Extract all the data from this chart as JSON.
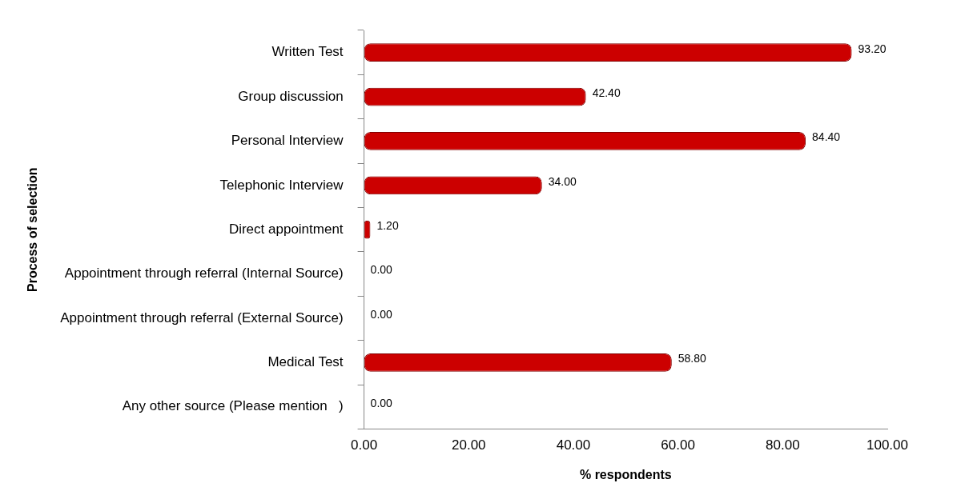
{
  "chart_data": {
    "type": "bar",
    "orientation": "horizontal",
    "xlabel": "% respondents",
    "ylabel": "Process of selection",
    "categories": [
      "Written Test",
      "Group discussion",
      "Personal Interview",
      "Telephonic Interview",
      "Direct appointment",
      "Appointment through referral (Internal Source)",
      "Appointment through referral (External Source)",
      "Medical Test",
      "Any other source (Please mention   )"
    ],
    "series": [
      {
        "color": "#cc0000",
        "values": [
          93.2,
          42.4,
          84.4,
          34.0,
          1.2,
          0,
          0,
          58.8,
          0
        ],
        "value_labels": [
          "93.20",
          "42.40",
          "84.40",
          "34.00",
          "1.20",
          "0.00",
          "0.00",
          "58.80",
          "0.00"
        ]
      }
    ],
    "xlim": [
      0,
      100
    ],
    "xticks": [
      {
        "value": 0,
        "label": "0.00"
      },
      {
        "value": 20,
        "label": "20.00"
      },
      {
        "value": 40,
        "label": "40.00"
      },
      {
        "value": 60,
        "label": "60.00"
      },
      {
        "value": 80,
        "label": "80.00"
      },
      {
        "value": 100,
        "label": "100.00"
      }
    ],
    "grid": false,
    "legend": false
  }
}
